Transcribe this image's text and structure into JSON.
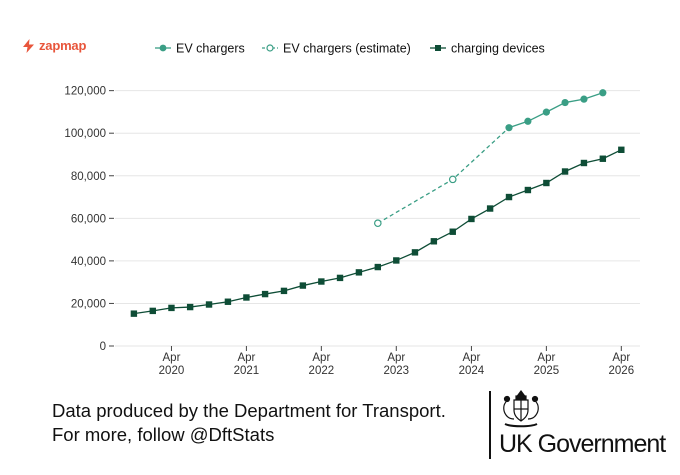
{
  "brand": {
    "name": "zapmap",
    "icon": "zapmap-bolt-icon",
    "color": "#e8553b"
  },
  "chart_data": {
    "type": "line",
    "title": "",
    "xlabel": "",
    "ylabel": "",
    "ylim": [
      0,
      125000
    ],
    "xlim": [
      "2019-07-01",
      "2026-07-01"
    ],
    "yticks": [
      0,
      20000,
      40000,
      60000,
      80000,
      100000,
      120000
    ],
    "ytick_labels": [
      "0",
      "20,000",
      "40,000",
      "60,000",
      "80,000",
      "100,000",
      "120,000"
    ],
    "xticks": [
      "2020-04-01",
      "2021-04-01",
      "2022-04-01",
      "2023-04-01",
      "2024-04-01",
      "2025-04-01",
      "2026-04-01"
    ],
    "xtick_labels": [
      [
        "Apr",
        "2020"
      ],
      [
        "Apr",
        "2021"
      ],
      [
        "Apr",
        "2022"
      ],
      [
        "Apr",
        "2023"
      ],
      [
        "Apr",
        "2024"
      ],
      [
        "Apr",
        "2025"
      ],
      [
        "Apr",
        "2026"
      ]
    ],
    "grid": true,
    "legend": "top",
    "series": [
      {
        "name": "EV chargers",
        "color": "#3a9e85",
        "marker": "circle",
        "dashed": false,
        "points": [
          [
            "2024-10-01",
            102600
          ],
          [
            "2025-01-01",
            105600
          ],
          [
            "2025-04-01",
            109900
          ],
          [
            "2025-07-01",
            114400
          ],
          [
            "2025-10-01",
            116000
          ],
          [
            "2026-01-01",
            119000
          ]
        ]
      },
      {
        "name": "EV chargers (estimate)",
        "color": "#3a9e85",
        "marker": "hollow-circle",
        "dashed": true,
        "points": [
          [
            "2023-01-01",
            57700
          ],
          [
            "2024-01-01",
            78300
          ],
          [
            "2024-10-01",
            102600
          ]
        ]
      },
      {
        "name": "charging devices",
        "color": "#0e4d36",
        "marker": "square",
        "dashed": false,
        "points": [
          [
            "2019-10-01",
            15200
          ],
          [
            "2020-01-01",
            16500
          ],
          [
            "2020-04-01",
            17900
          ],
          [
            "2020-07-01",
            18300
          ],
          [
            "2020-10-01",
            19500
          ],
          [
            "2021-01-01",
            20800
          ],
          [
            "2021-04-01",
            22800
          ],
          [
            "2021-07-01",
            24400
          ],
          [
            "2021-10-01",
            25900
          ],
          [
            "2022-01-01",
            28400
          ],
          [
            "2022-04-01",
            30300
          ],
          [
            "2022-07-01",
            32000
          ],
          [
            "2022-10-01",
            34600
          ],
          [
            "2023-01-01",
            37100
          ],
          [
            "2023-04-01",
            40200
          ],
          [
            "2023-07-01",
            44000
          ],
          [
            "2023-10-01",
            49200
          ],
          [
            "2024-01-01",
            53700
          ],
          [
            "2024-04-01",
            59700
          ],
          [
            "2024-07-01",
            64600
          ],
          [
            "2024-10-01",
            70000
          ],
          [
            "2025-01-01",
            73300
          ],
          [
            "2025-04-01",
            76600
          ],
          [
            "2025-07-01",
            82000
          ],
          [
            "2025-10-01",
            86000
          ],
          [
            "2026-01-01",
            88000
          ],
          [
            "2026-04-01",
            92200
          ]
        ]
      }
    ]
  },
  "footer": {
    "line1": "Data produced by the Department for Transport.",
    "line2": "For more, follow @DftStats"
  },
  "gov_logo": {
    "icon": "royal-coat-of-arms-icon",
    "text": "UK Government"
  }
}
